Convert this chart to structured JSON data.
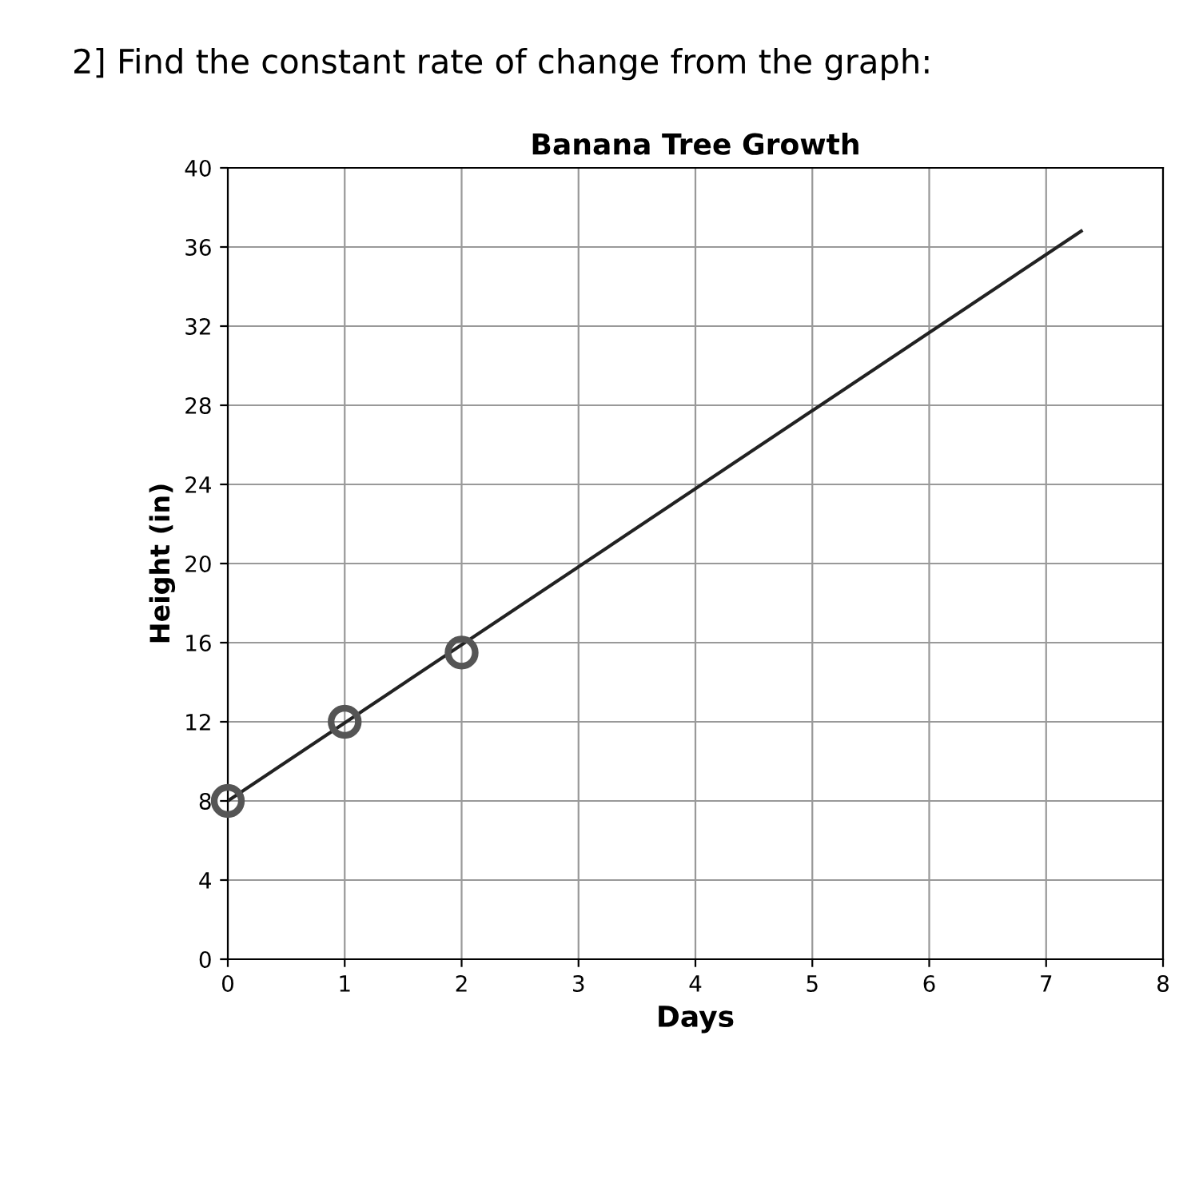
{
  "chart_data": {
    "type": "line",
    "title": "Banana Tree Growth",
    "xlabel": "Days",
    "ylabel": "Height (in)",
    "annotations": [
      "2] Find the constant rate of change from the graph:"
    ],
    "series": [
      {
        "color": "#222222",
        "x": [
          0,
          7.3
        ],
        "values": [
          8,
          36.8
        ],
        "marker": "none"
      },
      {
        "type": "scatter",
        "color": "#555555",
        "x": [
          0,
          1,
          2
        ],
        "values": [
          8,
          12,
          15.5
        ],
        "marker": "circle"
      }
    ],
    "xlim": [
      0,
      8
    ],
    "xticks": [
      0,
      1,
      2,
      3,
      4,
      5,
      6,
      7,
      8
    ],
    "ylim": [
      0,
      40
    ],
    "yticks": [
      0,
      4,
      8,
      12,
      16,
      20,
      24,
      28,
      32,
      36,
      40
    ],
    "grid": true,
    "legend": false
  }
}
